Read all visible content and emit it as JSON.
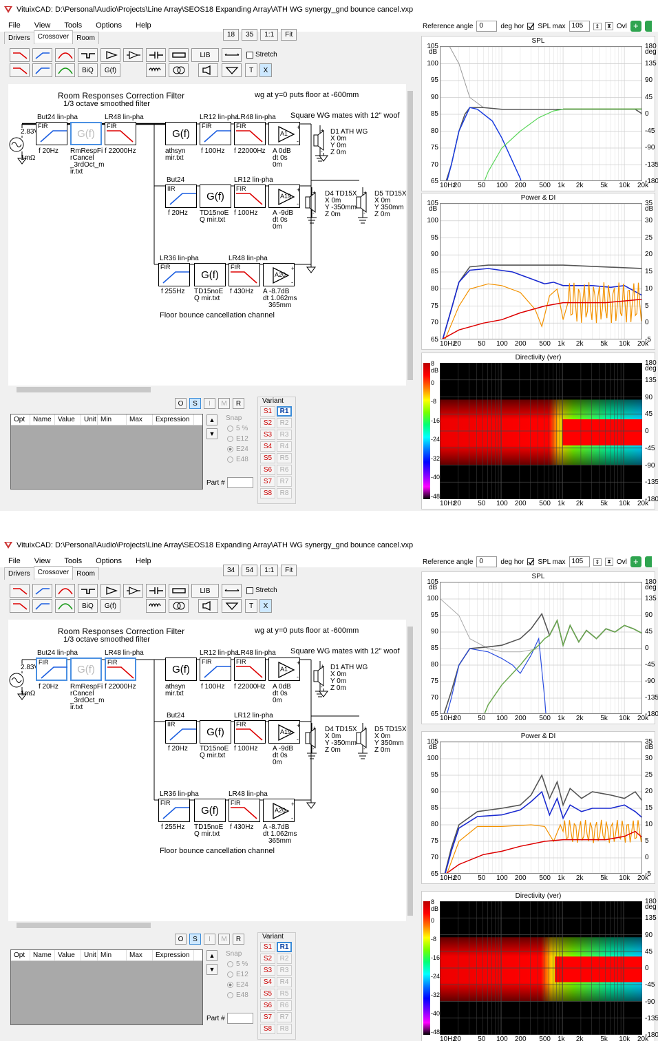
{
  "windows": [
    {
      "title": "VituixCAD: D:\\Personal\\Audio\\Projects\\Line Array\\SEOS18 Expanding Array\\ATH WG synergy_gnd bounce cancel.vxp",
      "menu": [
        "File",
        "View",
        "Tools",
        "Options",
        "Help"
      ],
      "tabs": [
        "Drivers",
        "Crossover",
        "Room"
      ],
      "zoom": [
        "18",
        "35",
        "1:1",
        "Fit"
      ],
      "stretch_label": "Stretch",
      "ref_angle_label": "Reference angle",
      "ref_angle_value": "0",
      "deg_hor": "deg hor",
      "spl_max_label": "SPL max",
      "spl_max_value": "105",
      "ovl": "Ovl",
      "plot_titles": [
        "SPL",
        "Power & DI",
        "Directivity (ver)"
      ],
      "spl_y": [
        "105",
        "100",
        "95",
        "90",
        "85",
        "80",
        "75",
        "70",
        "65"
      ],
      "spl_y_unit": "dB",
      "spl_r": [
        "180",
        "135",
        "90",
        "45",
        "0",
        "-45",
        "-90",
        "-135",
        "-180"
      ],
      "spl_r_unit": "deg",
      "pdi_y": [
        "105",
        "100",
        "95",
        "90",
        "85",
        "80",
        "75",
        "70",
        "65"
      ],
      "pdi_y_unit": "dB",
      "pdi_r": [
        "35",
        "30",
        "25",
        "20",
        "15",
        "10",
        "5",
        "0",
        "-5"
      ],
      "pdi_r_unit": "dB",
      "dir_y": [
        "8",
        "0",
        "-8",
        "-16",
        "-24",
        "-32",
        "-40",
        "-48"
      ],
      "dir_y_unit": "dB",
      "dir_r": [
        "180",
        "135",
        "90",
        "45",
        "0",
        "-45",
        "-90",
        "-135",
        "-180"
      ],
      "dir_r_unit": "deg",
      "freq_ticks": [
        "10Hz",
        "20",
        "50",
        "100",
        "200",
        "500",
        "1k",
        "2k",
        "5k",
        "10k",
        "20k"
      ],
      "canvas": {
        "title": "Room Responses Correction Filter",
        "subtitle": "1/3 octave smoothed filter",
        "note1": "wg at y=0 puts floor at -600mm",
        "note2": "Square WG mates with 12\" woof",
        "footer": "Floor bounce cancellation channel",
        "src": "2.83V",
        "src_r": "1mΩ",
        "b1_lbl": "But24 lin-pha",
        "b1_f": "f  20Hz",
        "b2_f1": "RmRespFi",
        "b2_f2": "rCancel",
        "b2_f3": "_3rdOct_m",
        "b2_f4": "ir.txt",
        "b3_lbl": "LR48 lin-pha",
        "b3_f": "f  22000Hz",
        "r1_g1": "athsyn",
        "r1_g2": "mir.txt",
        "r1_b1_lbl": "LR12 lin-pha",
        "r1_b1_f": "f  100Hz",
        "r1_b2_lbl": "LR48 lin-pha",
        "r1_b2_f": "f  22000Hz",
        "r1_a": "A1",
        "r1_a1": "A  0dB",
        "r1_a2": "dt 0s",
        "r1_a3": "0m",
        "r1_d": "D1 ATH WG",
        "r1_dx": "X 0m",
        "r1_dy": "Y 0m",
        "r1_dz": "Z 0m",
        "r2_lbl": "But24",
        "r2_f": "f  20Hz",
        "r2_g1": "TD15noE",
        "r2_g2": "Q mir.txt",
        "r2_b2_lbl": "LR12 lin-pha",
        "r2_b2_f": "f  100Hz",
        "r2_a": "A19",
        "r2_a1": "A  -9dB",
        "r2_a2": "dt 0s",
        "r2_a3": "0m",
        "r2_d4": "D4 TD15X",
        "r2_d4x": "X 0m",
        "r2_d4y": "Y -350mm",
        "r2_d4z": "Z 0m",
        "r2_d5": "D5 TD15X",
        "r2_d5x": "X 0m",
        "r2_d5y": "Y 350mm",
        "r2_d5z": "Z 0m",
        "r3_lbl": "LR36 lin-pha",
        "r3_f": "f  255Hz",
        "r3_g1": "TD15noE",
        "r3_g2": "Q mir.txt",
        "r3_b2_lbl": "LR48 lin-pha",
        "r3_b2_f": "f  430Hz",
        "r3_a": "A20",
        "r3_a1": "A  -8.7dB",
        "r3_a2": "dt 1.062ms",
        "r3_a3": "365mm",
        "fir": "FIR",
        "iir": "IIR",
        "gf": "G(f)"
      },
      "tools": {
        "lib": "LIB",
        "biq": "BiQ",
        "gf": "G(f)",
        "t": "T",
        "x": "X"
      },
      "osr": [
        "O",
        "S",
        "I",
        "M",
        "R"
      ],
      "grid_cols": [
        "Opt",
        "Name",
        "Value",
        "Unit",
        "Min",
        "Max",
        "Expression"
      ],
      "snap_title": "Snap",
      "snap_opts": [
        "5 %",
        "E12",
        "E24",
        "E48"
      ],
      "part_label": "Part #",
      "variant_title": "Variant",
      "variants_s": [
        "S1",
        "S2",
        "S3",
        "S4",
        "S5",
        "S6",
        "S7",
        "S8"
      ],
      "variants_r": [
        "R1",
        "R2",
        "R3",
        "R4",
        "R5",
        "R6",
        "R7",
        "R8"
      ]
    },
    {
      "zoom": [
        "34",
        "54",
        "1:1",
        "Fit"
      ]
    }
  ]
}
